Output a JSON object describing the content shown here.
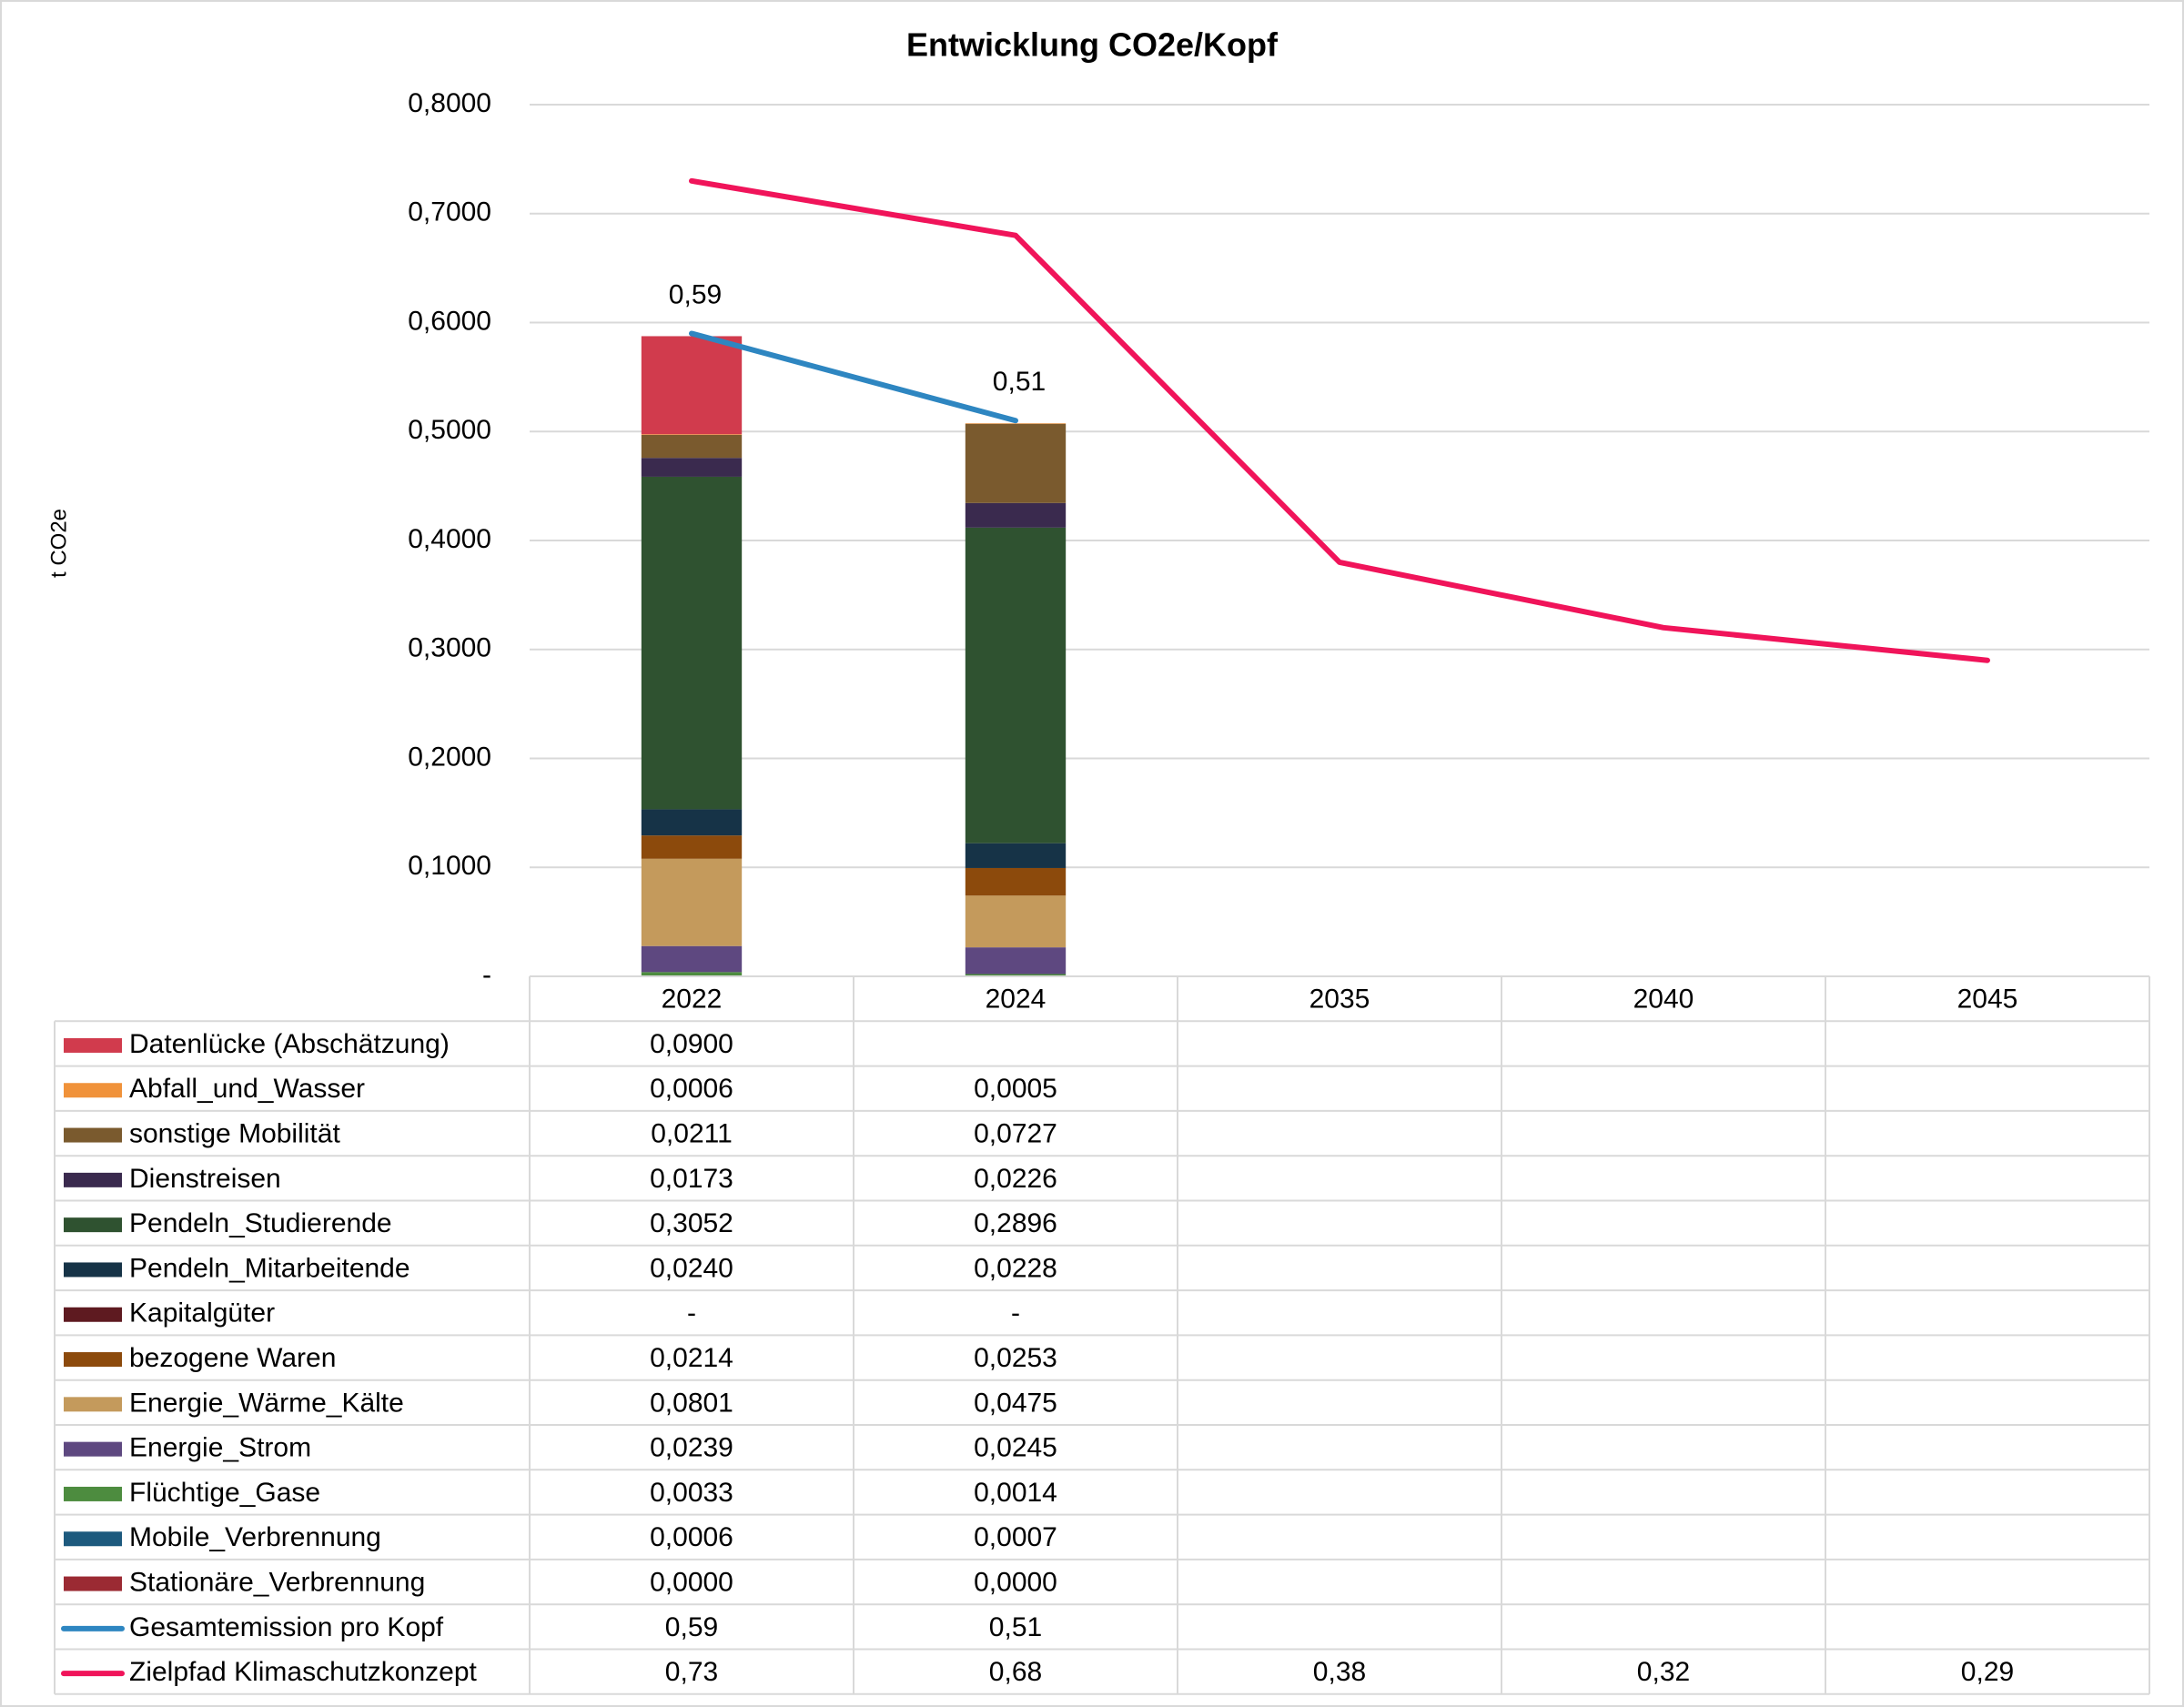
{
  "chart_data": {
    "type": "bar",
    "title": "Entwicklung CO2e/Kopf",
    "y_label": "t CO2e",
    "categories": [
      "2022",
      "2024",
      "2035",
      "2040",
      "2045"
    ],
    "ylim": [
      0,
      0.8
    ],
    "yticks": [
      {
        "value": 0,
        "label": "-"
      },
      {
        "value": 0.1,
        "label": "0,1000"
      },
      {
        "value": 0.2,
        "label": "0,2000"
      },
      {
        "value": 0.3,
        "label": "0,3000"
      },
      {
        "value": 0.4,
        "label": "0,4000"
      },
      {
        "value": 0.5,
        "label": "0,5000"
      },
      {
        "value": 0.6,
        "label": "0,6000"
      },
      {
        "value": 0.7,
        "label": "0,7000"
      },
      {
        "value": 0.8,
        "label": "0,8000"
      }
    ],
    "grid": true,
    "series": [
      {
        "name": "Datenlücke (Abschätzung)",
        "type": "bar",
        "color": "#d13b4d",
        "values": [
          0.09,
          null,
          null,
          null,
          null
        ],
        "value_labels": [
          "0,0900",
          null,
          null,
          null,
          null
        ]
      },
      {
        "name": "Abfall_und_Wasser",
        "type": "bar",
        "color": "#f0923a",
        "values": [
          0.0006,
          0.0005,
          null,
          null,
          null
        ],
        "value_labels": [
          "0,0006",
          "0,0005",
          null,
          null,
          null
        ]
      },
      {
        "name": "sonstige Mobilität",
        "type": "bar",
        "color": "#7a5a2e",
        "values": [
          0.0211,
          0.0727,
          null,
          null,
          null
        ],
        "value_labels": [
          "0,0211",
          "0,0727",
          null,
          null,
          null
        ]
      },
      {
        "name": "Dienstreisen",
        "type": "bar",
        "color": "#3a2a4e",
        "values": [
          0.0173,
          0.0226,
          null,
          null,
          null
        ],
        "value_labels": [
          "0,0173",
          "0,0226",
          null,
          null,
          null
        ]
      },
      {
        "name": "Pendeln_Studierende",
        "type": "bar",
        "color": "#2f5230",
        "values": [
          0.3052,
          0.2896,
          null,
          null,
          null
        ],
        "value_labels": [
          "0,3052",
          "0,2896",
          null,
          null,
          null
        ]
      },
      {
        "name": "Pendeln_Mitarbeitende",
        "type": "bar",
        "color": "#163347",
        "values": [
          0.024,
          0.0228,
          null,
          null,
          null
        ],
        "value_labels": [
          "0,0240",
          "0,0228",
          null,
          null,
          null
        ]
      },
      {
        "name": "Kapitalgüter",
        "type": "bar",
        "color": "#5e1a20",
        "values": [
          0,
          0,
          null,
          null,
          null
        ],
        "value_labels": [
          "-",
          "-",
          null,
          null,
          null
        ]
      },
      {
        "name": "bezogene Waren",
        "type": "bar",
        "color": "#8c4a0c",
        "values": [
          0.0214,
          0.0253,
          null,
          null,
          null
        ],
        "value_labels": [
          "0,0214",
          "0,0253",
          null,
          null,
          null
        ]
      },
      {
        "name": "Energie_Wärme_Kälte",
        "type": "bar",
        "color": "#c49a5c",
        "values": [
          0.0801,
          0.0475,
          null,
          null,
          null
        ],
        "value_labels": [
          "0,0801",
          "0,0475",
          null,
          null,
          null
        ]
      },
      {
        "name": "Energie_Strom",
        "type": "bar",
        "color": "#5e4880",
        "values": [
          0.0239,
          0.0245,
          null,
          null,
          null
        ],
        "value_labels": [
          "0,0239",
          "0,0245",
          null,
          null,
          null
        ]
      },
      {
        "name": "Flüchtige_Gase",
        "type": "bar",
        "color": "#4d8c3f",
        "values": [
          0.0033,
          0.0014,
          null,
          null,
          null
        ],
        "value_labels": [
          "0,0033",
          "0,0014",
          null,
          null,
          null
        ]
      },
      {
        "name": "Mobile_Verbrennung",
        "type": "bar",
        "color": "#1d5a7e",
        "values": [
          0.0006,
          0.0007,
          null,
          null,
          null
        ],
        "value_labels": [
          "0,0006",
          "0,0007",
          null,
          null,
          null
        ]
      },
      {
        "name": "Stationäre_Verbrennung",
        "type": "bar",
        "color": "#9b2a33",
        "values": [
          0,
          0,
          null,
          null,
          null
        ],
        "value_labels": [
          "0,0000",
          "0,0000",
          null,
          null,
          null
        ]
      },
      {
        "name": "Gesamtemission pro Kopf",
        "type": "line",
        "color": "#2e86c1",
        "values": [
          0.59,
          0.51,
          null,
          null,
          null
        ],
        "value_labels": [
          "0,59",
          "0,51",
          null,
          null,
          null
        ]
      },
      {
        "name": "Zielpfad Klimaschutzkonzept",
        "type": "line",
        "color": "#f0145a",
        "values": [
          0.73,
          0.68,
          0.38,
          0.32,
          0.29
        ],
        "value_labels": [
          "0,73",
          "0,68",
          "0,38",
          "0,32",
          "0,29"
        ]
      }
    ]
  }
}
